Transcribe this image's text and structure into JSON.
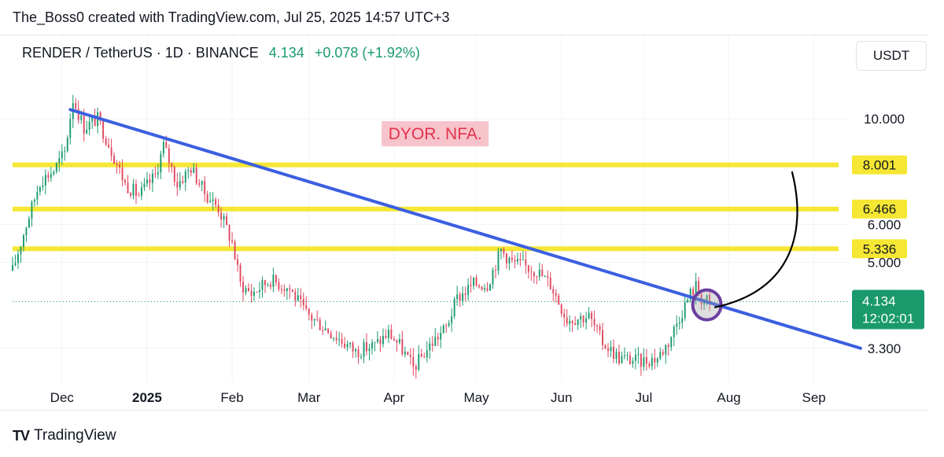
{
  "header": {
    "caption": "The_Boss0 created with TradingView.com, Jul 25, 2025 14:57 UTC+3",
    "symbol": "RENDER / TetherUS · 1D · BINANCE",
    "price": "4.134",
    "change": "+0.078 (+1.92%)",
    "currency": "USDT"
  },
  "footer": {
    "brand": "TradingView",
    "brand_mark": "TV"
  },
  "colors": {
    "up": "#1a9a6c",
    "down": "#e0475e",
    "trendline": "#3b5fe0",
    "level": "#f5e733",
    "level_label_bg": "#f5e733",
    "annotation_bg": "#f7c4cb",
    "annotation_text": "#e4324d",
    "circle": "#6a3fa0",
    "arrow": "#000000"
  },
  "chart_data": {
    "type": "candlestick",
    "timeframe": "1D",
    "y_scale": "log",
    "ylim": [
      2.8,
      13.5
    ],
    "x_start": "2024-11-13",
    "x_end": "2025-09-14",
    "x_ticks": [
      {
        "label": "Dec",
        "date": "2024-12-01",
        "bold": false
      },
      {
        "label": "2025",
        "date": "2025-01-01",
        "bold": true
      },
      {
        "label": "Feb",
        "date": "2025-02-01",
        "bold": false
      },
      {
        "label": "Mar",
        "date": "2025-03-01",
        "bold": false
      },
      {
        "label": "Apr",
        "date": "2025-04-01",
        "bold": false
      },
      {
        "label": "May",
        "date": "2025-05-01",
        "bold": false
      },
      {
        "label": "Jun",
        "date": "2025-06-01",
        "bold": false
      },
      {
        "label": "Jul",
        "date": "2025-07-01",
        "bold": false
      },
      {
        "label": "Aug",
        "date": "2025-08-01",
        "bold": false
      },
      {
        "label": "Sep",
        "date": "2025-09-01",
        "bold": false
      }
    ],
    "y_ticks": [
      {
        "label": "10.000",
        "value": 10.0
      },
      {
        "label": "6.000",
        "value": 6.0
      },
      {
        "label": "5.000",
        "value": 5.0
      },
      {
        "label": "3.300",
        "value": 3.3
      }
    ],
    "levels": [
      {
        "label": "8.001",
        "value": 8.001
      },
      {
        "label": "6.466",
        "value": 6.466
      },
      {
        "label": "5.336",
        "value": 5.336
      }
    ],
    "current_price": {
      "label": "4.134",
      "countdown": "12:02:01",
      "value": 4.134
    },
    "trendline": {
      "start_date": "2024-12-04",
      "start_value": 10.45,
      "end_date": "2025-09-18",
      "end_value": 3.3
    },
    "annotation": {
      "text": "DYOR. NFA.",
      "date": "2025-04-16",
      "value": 9.3
    },
    "breakout_circle": {
      "date": "2025-07-24",
      "value": 4.07
    },
    "curved_arrow": {
      "from_date": "2025-08-24",
      "from_value": 7.75,
      "to_date": "2025-07-25",
      "to_value": 4.05
    },
    "price_path": [
      [
        "2024-11-13",
        4.8
      ],
      [
        "2024-11-18",
        6.0
      ],
      [
        "2024-11-23",
        7.4
      ],
      [
        "2024-11-28",
        7.8
      ],
      [
        "2024-12-02",
        8.5
      ],
      [
        "2024-12-05",
        11.0
      ],
      [
        "2024-12-09",
        9.6
      ],
      [
        "2024-12-14",
        10.0
      ],
      [
        "2024-12-19",
        8.6
      ],
      [
        "2024-12-24",
        7.3
      ],
      [
        "2024-12-29",
        6.9
      ],
      [
        "2025-01-04",
        7.6
      ],
      [
        "2025-01-07",
        8.8
      ],
      [
        "2025-01-12",
        7.3
      ],
      [
        "2025-01-17",
        7.9
      ],
      [
        "2025-01-22",
        7.0
      ],
      [
        "2025-01-27",
        6.5
      ],
      [
        "2025-02-01",
        5.5
      ],
      [
        "2025-02-04",
        4.5
      ],
      [
        "2025-02-08",
        4.3
      ],
      [
        "2025-02-15",
        4.6
      ],
      [
        "2025-02-22",
        4.4
      ],
      [
        "2025-02-28",
        3.9
      ],
      [
        "2025-03-08",
        3.6
      ],
      [
        "2025-03-18",
        3.25
      ],
      [
        "2025-03-25",
        3.35
      ],
      [
        "2025-03-30",
        3.55
      ],
      [
        "2025-04-03",
        3.35
      ],
      [
        "2025-04-08",
        3.0
      ],
      [
        "2025-04-15",
        3.4
      ],
      [
        "2025-04-20",
        3.65
      ],
      [
        "2025-04-24",
        4.2
      ],
      [
        "2025-04-30",
        4.5
      ],
      [
        "2025-05-05",
        4.5
      ],
      [
        "2025-05-10",
        5.3
      ],
      [
        "2025-05-14",
        5.0
      ],
      [
        "2025-05-19",
        4.9
      ],
      [
        "2025-05-23",
        4.8
      ],
      [
        "2025-05-28",
        4.5
      ],
      [
        "2025-06-03",
        3.8
      ],
      [
        "2025-06-11",
        3.85
      ],
      [
        "2025-06-16",
        3.4
      ],
      [
        "2025-06-22",
        3.15
      ],
      [
        "2025-06-30",
        3.1
      ],
      [
        "2025-07-06",
        3.15
      ],
      [
        "2025-07-10",
        3.4
      ],
      [
        "2025-07-14",
        3.85
      ],
      [
        "2025-07-18",
        4.3
      ],
      [
        "2025-07-20",
        4.45
      ],
      [
        "2025-07-22",
        4.2
      ],
      [
        "2025-07-25",
        4.134
      ]
    ]
  }
}
